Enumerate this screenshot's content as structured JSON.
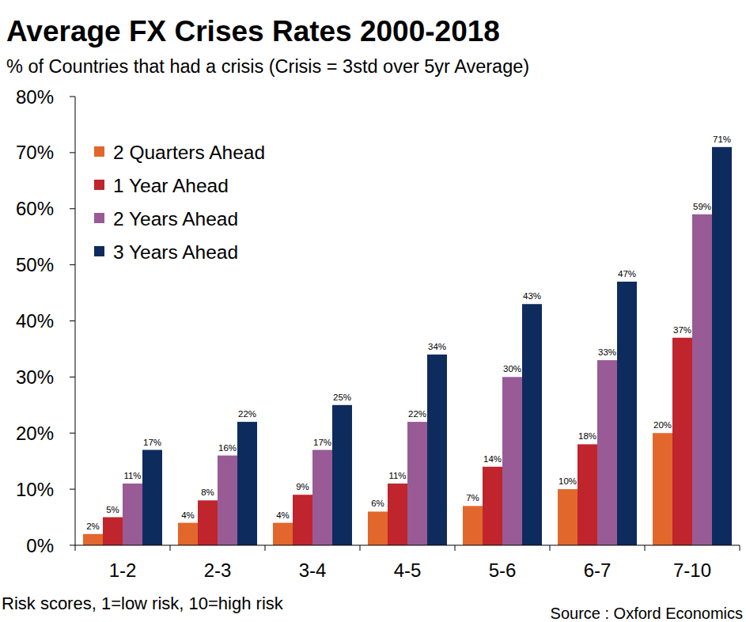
{
  "chart_data": {
    "type": "bar",
    "title": "Average FX Crises Rates 2000-2018",
    "subtitle": "% of Countries that had a crisis (Crisis = 3std over 5yr Average)",
    "xlabel": "Risk scores, 1=low risk, 10=high risk",
    "source": "Source : Oxford Economics",
    "categories": [
      "1-2",
      "2-3",
      "3-4",
      "4-5",
      "5-6",
      "6-7",
      "7-10"
    ],
    "series": [
      {
        "name": "2 Quarters Ahead",
        "color": "#e2672c",
        "values": [
          2,
          4,
          4,
          6,
          7,
          10,
          20
        ],
        "value_labels": [
          "2%",
          "4%",
          "4%",
          "6%",
          "7%",
          "10%",
          "20%"
        ]
      },
      {
        "name": "1 Year Ahead",
        "color": "#c0242c",
        "values": [
          5,
          8,
          9,
          11,
          14,
          18,
          37
        ],
        "value_labels": [
          "5%",
          "8%",
          "9%",
          "11%",
          "14%",
          "18%",
          "37%"
        ]
      },
      {
        "name": "2 Years Ahead",
        "color": "#985b96",
        "values": [
          11,
          16,
          17,
          22,
          30,
          33,
          59
        ],
        "value_labels": [
          "11%",
          "16%",
          "17%",
          "22%",
          "30%",
          "33%",
          "59%"
        ]
      },
      {
        "name": "3 Years Ahead",
        "color": "#0e2b5e",
        "values": [
          17,
          22,
          25,
          34,
          43,
          47,
          71
        ],
        "value_labels": [
          "17%",
          "22%",
          "25%",
          "34%",
          "43%",
          "47%",
          "71%"
        ]
      }
    ],
    "ylim": [
      0,
      80
    ],
    "yticks": [
      {
        "value": 0,
        "label": "0%"
      },
      {
        "value": 10,
        "label": "10%"
      },
      {
        "value": 20,
        "label": "20%"
      },
      {
        "value": 30,
        "label": "30%"
      },
      {
        "value": 40,
        "label": "40%"
      },
      {
        "value": 50,
        "label": "50%"
      },
      {
        "value": 60,
        "label": "60%"
      },
      {
        "value": 70,
        "label": "70%"
      },
      {
        "value": 80,
        "label": "80%"
      }
    ],
    "grid": false,
    "legend": "top-left",
    "data_labels": true
  }
}
